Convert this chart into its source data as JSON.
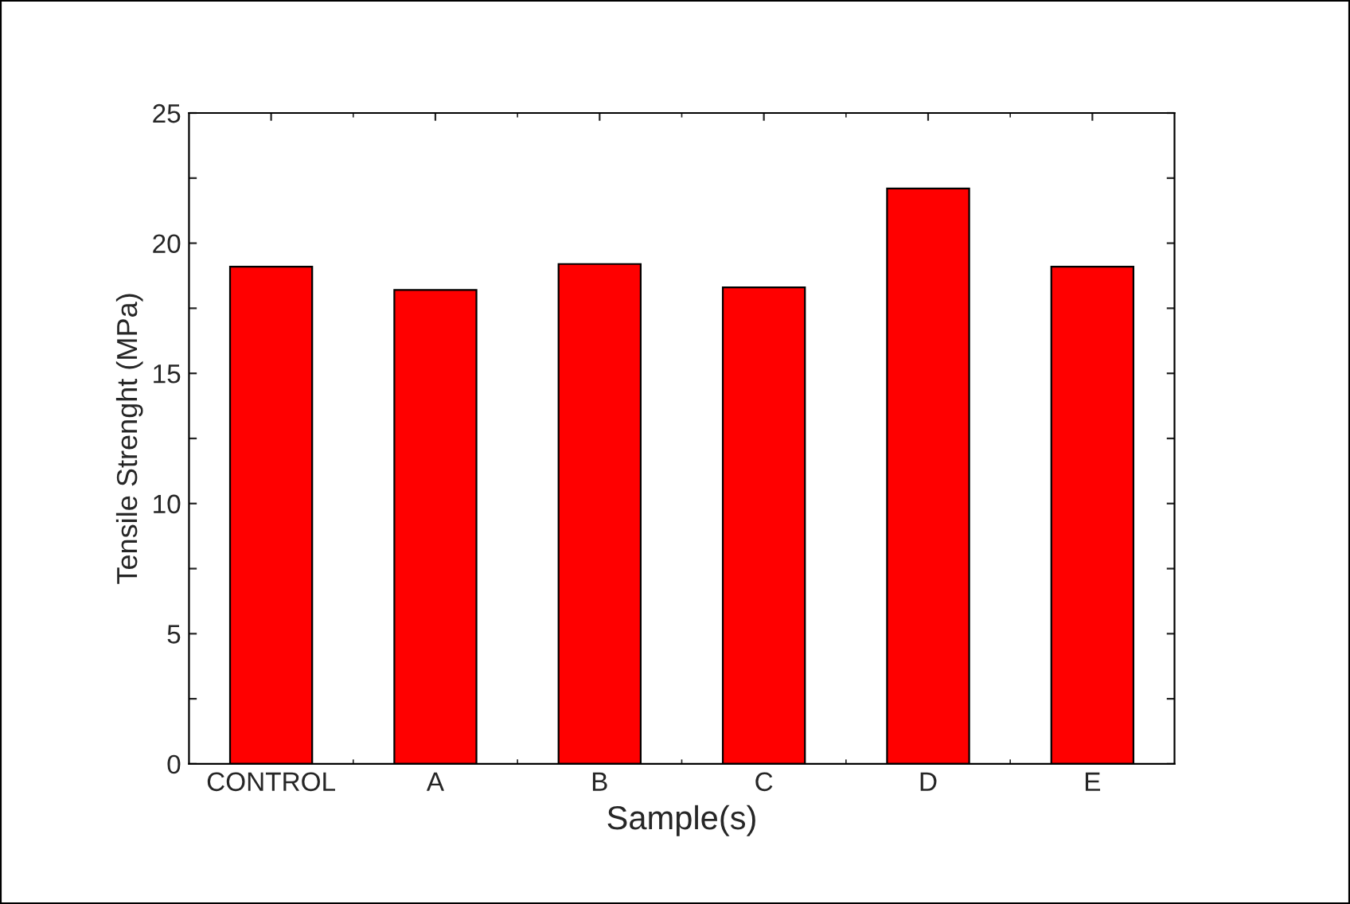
{
  "chart_data": {
    "type": "bar",
    "xlabel": "Sample(s)",
    "ylabel": "Tensile Strenght (MPa)",
    "categories": [
      "CONTROL",
      "A",
      "B",
      "C",
      "D",
      "E"
    ],
    "values": [
      19.1,
      18.2,
      19.2,
      18.3,
      22.1,
      19.1
    ],
    "color": "#ff0000",
    "ylim": [
      0,
      25
    ],
    "yticks": [
      0,
      {
        "value": 2.5,
        "label": null
      },
      5,
      {
        "value": 7.5,
        "label": null
      },
      10,
      {
        "value": 12.5,
        "label": null
      },
      15,
      {
        "value": 17.5,
        "label": null
      },
      20,
      {
        "value": 22.5,
        "label": null
      },
      25
    ],
    "grid": false,
    "legend": false
  }
}
